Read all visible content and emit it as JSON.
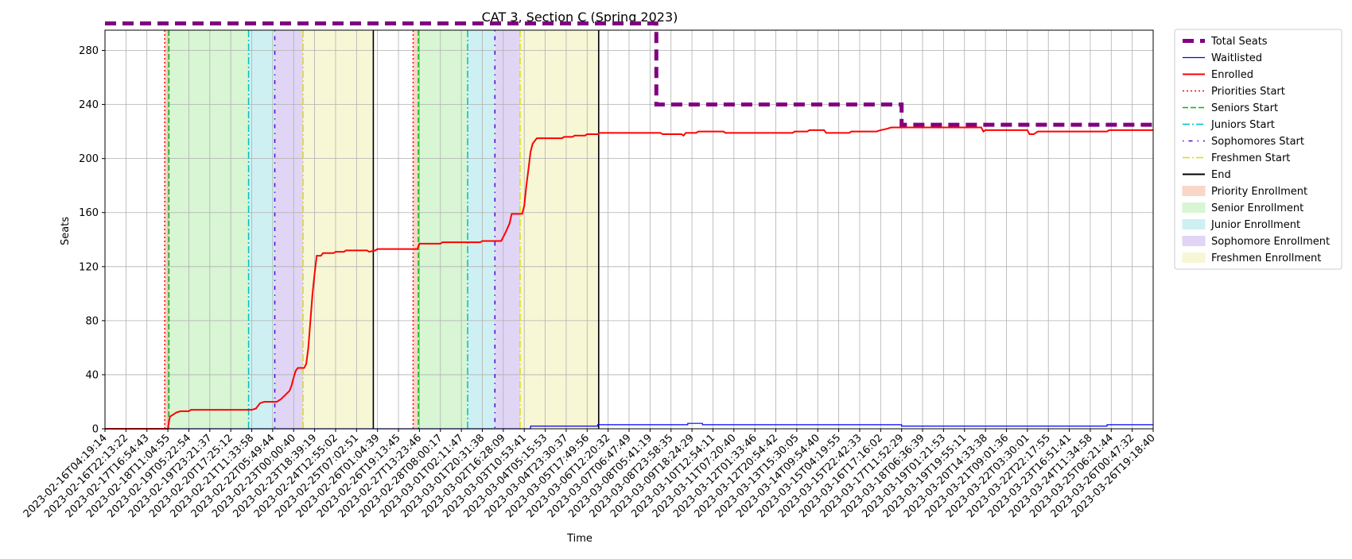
{
  "chart_data": {
    "type": "line",
    "title": "CAT 3, Section C (Spring 2023)",
    "xlabel": "Time",
    "ylabel": "Seats",
    "ylim": [
      0,
      295
    ],
    "yticks": [
      0,
      40,
      80,
      120,
      160,
      200,
      240,
      280
    ],
    "grid": true,
    "legend_position": "outside-right",
    "x_tick_labels": [
      "2023-02-16T04:19:14",
      "2023-02-16T22:13:22",
      "2023-02-17T16:54:43",
      "2023-02-18T11:04:55",
      "2023-02-19T05:22:54",
      "2023-02-19T23:21:37",
      "2023-02-20T17:25:12",
      "2023-02-21T11:33:58",
      "2023-02-22T05:49:44",
      "2023-02-23T00:00:40",
      "2023-02-23T18:39:19",
      "2023-02-24T12:55:02",
      "2023-02-25T07:02:51",
      "2023-02-26T01:04:39",
      "2023-02-26T19:13:45",
      "2023-02-27T13:23:46",
      "2023-02-28T08:00:17",
      "2023-03-01T02:11:47",
      "2023-03-01T20:31:38",
      "2023-03-02T16:28:09",
      "2023-03-03T10:53:41",
      "2023-03-04T05:15:53",
      "2023-03-04T23:30:37",
      "2023-03-05T17:49:56",
      "2023-03-06T12:20:32",
      "2023-03-07T06:47:49",
      "2023-03-08T05:41:19",
      "2023-03-08T23:58:35",
      "2023-03-09T18:24:29",
      "2023-03-10T12:54:11",
      "2023-03-11T07:20:40",
      "2023-03-12T01:33:46",
      "2023-03-12T20:54:42",
      "2023-03-13T15:30:05",
      "2023-03-14T09:54:40",
      "2023-03-15T04:19:55",
      "2023-03-15T22:42:33",
      "2023-03-16T17:16:02",
      "2023-03-17T11:52:29",
      "2023-03-18T06:36:39",
      "2023-03-19T01:21:53",
      "2023-03-19T19:55:11",
      "2023-03-20T14:33:38",
      "2023-03-21T09:01:36",
      "2023-03-22T03:30:01",
      "2023-03-22T22:17:55",
      "2023-03-23T16:51:41",
      "2023-03-24T11:34:58",
      "2023-03-25T06:21:44",
      "2023-03-26T00:47:32",
      "2023-03-26T19:18:40"
    ],
    "x_index_range": [
      0,
      50
    ],
    "series": [
      {
        "name": "Total Seats",
        "color": "#800080",
        "style": "dashed-thick",
        "points": [
          [
            0,
            300
          ],
          [
            26.3,
            300
          ],
          [
            26.3,
            240
          ],
          [
            38.0,
            240
          ],
          [
            38.0,
            225
          ],
          [
            50,
            225
          ]
        ]
      },
      {
        "name": "Waitlisted",
        "color": "#0000ff",
        "style": "solid-thin",
        "points": [
          [
            0,
            0
          ],
          [
            20.3,
            0
          ],
          [
            20.3,
            2
          ],
          [
            23.5,
            2
          ],
          [
            23.5,
            3
          ],
          [
            27.8,
            3
          ],
          [
            27.8,
            4
          ],
          [
            28.5,
            4
          ],
          [
            28.5,
            3
          ],
          [
            38.0,
            3
          ],
          [
            38.0,
            2
          ],
          [
            47.8,
            2
          ],
          [
            47.8,
            3
          ],
          [
            50,
            3
          ]
        ]
      },
      {
        "name": "Enrolled",
        "color": "#ff0000",
        "style": "solid",
        "points": [
          [
            0,
            0
          ],
          [
            3.0,
            0
          ],
          [
            3.05,
            5
          ],
          [
            3.1,
            9
          ],
          [
            3.2,
            10
          ],
          [
            3.3,
            11
          ],
          [
            3.4,
            12
          ],
          [
            3.6,
            13
          ],
          [
            4.0,
            13
          ],
          [
            4.1,
            14
          ],
          [
            7.0,
            14
          ],
          [
            7.2,
            15
          ],
          [
            7.3,
            17
          ],
          [
            7.4,
            19
          ],
          [
            7.6,
            20
          ],
          [
            8.2,
            20
          ],
          [
            8.4,
            22
          ],
          [
            8.6,
            25
          ],
          [
            8.8,
            28
          ],
          [
            8.9,
            32
          ],
          [
            9.0,
            38
          ],
          [
            9.1,
            43
          ],
          [
            9.2,
            45
          ],
          [
            9.5,
            45
          ],
          [
            9.6,
            48
          ],
          [
            9.7,
            60
          ],
          [
            9.8,
            80
          ],
          [
            9.9,
            100
          ],
          [
            10.0,
            115
          ],
          [
            10.1,
            128
          ],
          [
            10.3,
            128
          ],
          [
            10.4,
            130
          ],
          [
            10.9,
            130
          ],
          [
            11.0,
            131
          ],
          [
            11.4,
            131
          ],
          [
            11.5,
            132
          ],
          [
            12.5,
            132
          ],
          [
            12.6,
            131
          ],
          [
            12.9,
            132
          ],
          [
            13.0,
            133
          ],
          [
            14.9,
            133
          ],
          [
            15.0,
            137
          ],
          [
            16.0,
            137
          ],
          [
            16.1,
            138
          ],
          [
            17.9,
            138
          ],
          [
            18.0,
            139
          ],
          [
            18.9,
            139
          ],
          [
            19.1,
            145
          ],
          [
            19.3,
            152
          ],
          [
            19.4,
            159
          ],
          [
            19.9,
            159
          ],
          [
            20.0,
            165
          ],
          [
            20.1,
            180
          ],
          [
            20.2,
            192
          ],
          [
            20.3,
            205
          ],
          [
            20.4,
            211
          ],
          [
            20.5,
            213
          ],
          [
            20.6,
            215
          ],
          [
            21.8,
            215
          ],
          [
            21.9,
            216
          ],
          [
            22.3,
            216
          ],
          [
            22.4,
            217
          ],
          [
            22.9,
            217
          ],
          [
            23.0,
            218
          ],
          [
            23.5,
            218
          ],
          [
            23.6,
            219
          ],
          [
            26.5,
            219
          ],
          [
            26.6,
            218
          ],
          [
            27.5,
            218
          ],
          [
            27.6,
            217
          ],
          [
            27.7,
            219
          ],
          [
            28.2,
            219
          ],
          [
            28.3,
            220
          ],
          [
            29.5,
            220
          ],
          [
            29.6,
            219
          ],
          [
            32.8,
            219
          ],
          [
            32.9,
            220
          ],
          [
            33.5,
            220
          ],
          [
            33.6,
            221
          ],
          [
            34.3,
            221
          ],
          [
            34.4,
            219
          ],
          [
            35.5,
            219
          ],
          [
            35.6,
            220
          ],
          [
            36.8,
            220
          ],
          [
            37.0,
            221
          ],
          [
            37.3,
            222
          ],
          [
            37.5,
            223
          ],
          [
            41.8,
            223
          ],
          [
            41.9,
            220
          ],
          [
            42.0,
            221
          ],
          [
            44.0,
            221
          ],
          [
            44.1,
            218
          ],
          [
            44.3,
            218
          ],
          [
            44.5,
            220
          ],
          [
            47.8,
            220
          ],
          [
            47.9,
            221
          ],
          [
            50,
            221
          ]
        ]
      }
    ],
    "vertical_markers": [
      {
        "name": "Priorities Start",
        "color": "#ff0000",
        "style": "dotted",
        "x": [
          2.85,
          14.7
        ]
      },
      {
        "name": "Seniors Start",
        "color": "#00bb00",
        "style": "dashed",
        "x": [
          3.05,
          14.95
        ]
      },
      {
        "name": "Juniors Start",
        "color": "#00bfbf",
        "style": "dashdot",
        "x": [
          6.85,
          17.3
        ]
      },
      {
        "name": "Sophomores Start",
        "color": "#5500dd",
        "style": "dashdotted-sparse",
        "x": [
          8.1,
          18.6
        ]
      },
      {
        "name": "Freshmen Start",
        "color": "#dddd00",
        "style": "dashdot",
        "x": [
          9.45,
          19.8
        ]
      },
      {
        "name": "End",
        "color": "#000000",
        "style": "solid",
        "x": [
          12.8,
          23.55
        ]
      }
    ],
    "shaded_regions": [
      {
        "name": "Priority Enrollment",
        "color": "#f8d6c8",
        "ranges": [
          [
            2.85,
            3.05
          ],
          [
            14.7,
            14.95
          ]
        ]
      },
      {
        "name": "Senior Enrollment",
        "color": "#d8f5d4",
        "ranges": [
          [
            3.05,
            6.85
          ],
          [
            14.95,
            17.3
          ]
        ]
      },
      {
        "name": "Junior Enrollment",
        "color": "#cff0f2",
        "ranges": [
          [
            6.85,
            8.1
          ],
          [
            17.3,
            18.6
          ]
        ]
      },
      {
        "name": "Sophomore Enrollment",
        "color": "#e0d5f5",
        "ranges": [
          [
            8.1,
            9.45
          ],
          [
            18.6,
            19.8
          ]
        ]
      },
      {
        "name": "Freshmen Enrollment",
        "color": "#f7f7d6",
        "ranges": [
          [
            9.45,
            12.8
          ],
          [
            19.8,
            23.55
          ]
        ]
      }
    ],
    "legend": [
      {
        "label": "Total Seats",
        "kind": "line",
        "color": "#800080",
        "style": "dashed-thick"
      },
      {
        "label": "Waitlisted",
        "kind": "line",
        "color": "#0000ff",
        "style": "solid-thin"
      },
      {
        "label": "Enrolled",
        "kind": "line",
        "color": "#ff0000",
        "style": "solid"
      },
      {
        "label": "Priorities Start",
        "kind": "line",
        "color": "#ff0000",
        "style": "dotted"
      },
      {
        "label": "Seniors Start",
        "kind": "line",
        "color": "#00bb00",
        "style": "dashed"
      },
      {
        "label": "Juniors Start",
        "kind": "line",
        "color": "#00bfbf",
        "style": "dashdot"
      },
      {
        "label": "Sophomores Start",
        "kind": "line",
        "color": "#5500dd",
        "style": "dashdotted-sparse"
      },
      {
        "label": "Freshmen Start",
        "kind": "line",
        "color": "#dddd00",
        "style": "dashdot"
      },
      {
        "label": "End",
        "kind": "line",
        "color": "#000000",
        "style": "solid"
      },
      {
        "label": "Priority Enrollment",
        "kind": "patch",
        "color": "#f8d6c8"
      },
      {
        "label": "Senior Enrollment",
        "kind": "patch",
        "color": "#d8f5d4"
      },
      {
        "label": "Junior Enrollment",
        "kind": "patch",
        "color": "#cff0f2"
      },
      {
        "label": "Sophomore Enrollment",
        "kind": "patch",
        "color": "#e0d5f5"
      },
      {
        "label": "Freshmen Enrollment",
        "kind": "patch",
        "color": "#f7f7d6"
      }
    ]
  }
}
